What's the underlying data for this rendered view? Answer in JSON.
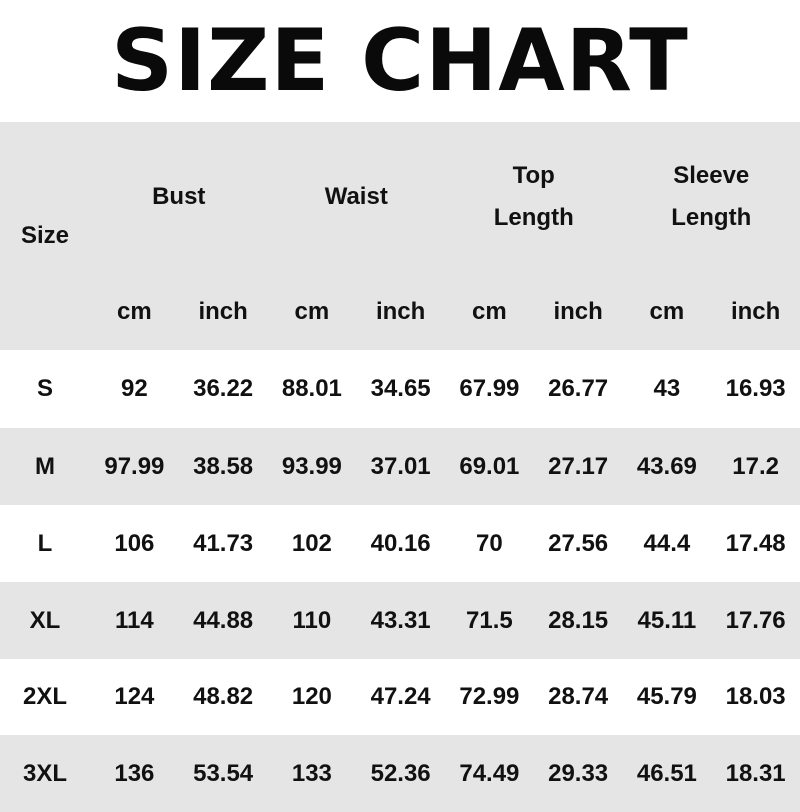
{
  "title": "SIZE CHART",
  "header": {
    "size_label": "Size",
    "groups": [
      {
        "label": "Bust"
      },
      {
        "label": "Waist"
      },
      {
        "label": "Top\nLength"
      },
      {
        "label": "Sleeve\nLength"
      }
    ],
    "units": [
      "cm",
      "inch",
      "cm",
      "inch",
      "cm",
      "inch",
      "cm",
      "inch"
    ]
  },
  "rows": [
    {
      "size": "S",
      "values": [
        "92",
        "36.22",
        "88.01",
        "34.65",
        "67.99",
        "26.77",
        "43",
        "16.93"
      ]
    },
    {
      "size": "M",
      "values": [
        "97.99",
        "38.58",
        "93.99",
        "37.01",
        "69.01",
        "27.17",
        "43.69",
        "17.2"
      ]
    },
    {
      "size": "L",
      "values": [
        "106",
        "41.73",
        "102",
        "40.16",
        "70",
        "27.56",
        "44.4",
        "17.48"
      ]
    },
    {
      "size": "XL",
      "values": [
        "114",
        "44.88",
        "110",
        "43.31",
        "71.5",
        "28.15",
        "45.11",
        "17.76"
      ]
    },
    {
      "size": "2XL",
      "values": [
        "124",
        "48.82",
        "120",
        "47.24",
        "72.99",
        "28.74",
        "45.79",
        "18.03"
      ]
    },
    {
      "size": "3XL",
      "values": [
        "136",
        "53.54",
        "133",
        "52.36",
        "74.49",
        "29.33",
        "46.51",
        "18.31"
      ]
    }
  ],
  "colors": {
    "stripe": "#e5e5e5",
    "text": "#111111"
  }
}
